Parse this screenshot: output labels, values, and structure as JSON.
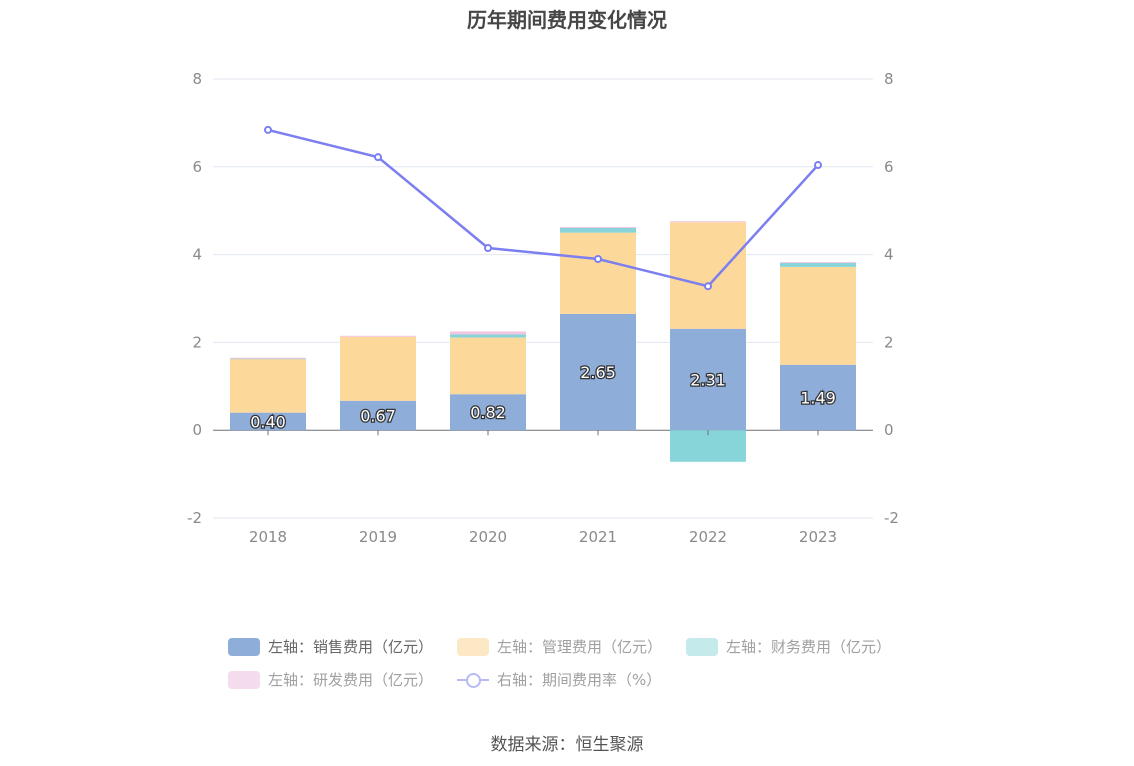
{
  "chart_data": {
    "type": "bar",
    "title": "历年期间费用变化情况",
    "categories": [
      "2018",
      "2019",
      "2020",
      "2021",
      "2022",
      "2023"
    ],
    "series": [
      {
        "name": "左轴：销售费用（亿元）",
        "axis": "left",
        "kind": "bar",
        "color": "#8eadd9",
        "values": [
          0.4,
          0.67,
          0.82,
          2.65,
          2.31,
          1.49
        ]
      },
      {
        "name": "左轴：管理费用（亿元）",
        "axis": "left",
        "kind": "bar",
        "color": "#fdd89b",
        "values": [
          1.23,
          1.46,
          1.29,
          1.85,
          2.43,
          2.23
        ]
      },
      {
        "name": "左轴：财务费用（亿元）",
        "axis": "left",
        "kind": "bar",
        "color": "#88d5d9",
        "values": [
          0.01,
          0.0,
          0.07,
          0.11,
          -0.72,
          0.09
        ]
      },
      {
        "name": "左轴：研发费用（亿元）",
        "axis": "left",
        "kind": "bar",
        "color": "#f1c6e3",
        "values": [
          0.01,
          0.02,
          0.07,
          0.02,
          0.02,
          0.02
        ]
      },
      {
        "name": "右轴：期间费用率（%）",
        "axis": "right",
        "kind": "line",
        "color": "#7b7fef",
        "values": [
          6.84,
          6.22,
          4.15,
          3.9,
          3.28,
          6.04
        ]
      }
    ],
    "data_labels": [
      "0.40",
      "0.67",
      "0.82",
      "2.65",
      "2.31",
      "1.49"
    ],
    "y_left": {
      "min": -2,
      "max": 8,
      "ticks": [
        "-2",
        "0",
        "2",
        "4",
        "6",
        "8"
      ]
    },
    "y_right": {
      "min": -2,
      "max": 8,
      "ticks": [
        "-2",
        "0",
        "2",
        "4",
        "6",
        "8"
      ]
    },
    "grid": true,
    "legend_position": "bottom"
  },
  "source_text": "数据来源：恒生聚源"
}
